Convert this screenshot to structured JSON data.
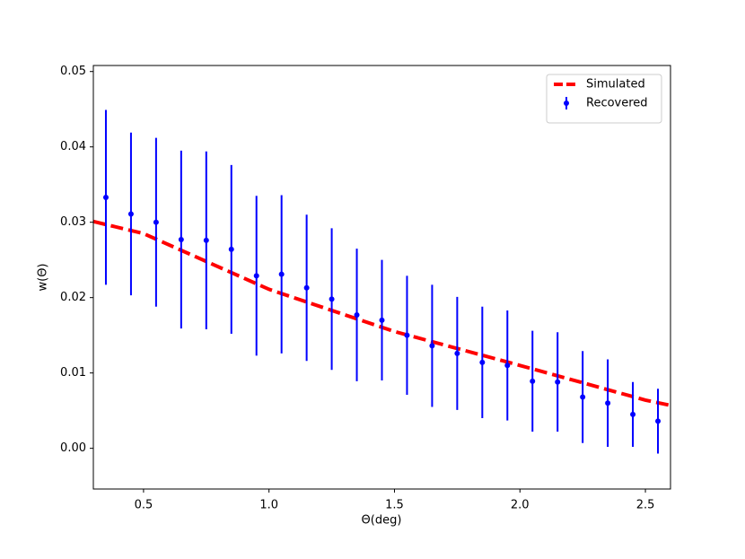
{
  "chart_data": {
    "type": "errorbar",
    "xlabel": "Θ(deg)",
    "ylabel": "w(Θ)",
    "xlim": [
      0.3,
      2.6
    ],
    "ylim": [
      -0.0054,
      0.0508
    ],
    "xticks": [
      0.5,
      {
        "value": 1,
        "label": "1.0"
      },
      1.5,
      {
        "value": 2,
        "label": "2.0"
      },
      2.5
    ],
    "yticks": [
      {
        "value": 0,
        "label": "0.00"
      },
      0.01,
      0.02,
      0.03,
      0.04,
      0.05
    ],
    "legend": "upper right",
    "series": [
      {
        "name": "Simulated",
        "type": "line",
        "color": "#ff0000",
        "x": [
          0.3,
          0.5,
          1.0,
          1.5,
          2.0,
          2.5,
          2.6
        ],
        "values": [
          0.0301,
          0.0285,
          0.0211,
          0.0155,
          0.011,
          0.0064,
          0.0057
        ]
      },
      {
        "name": "Recovered",
        "type": "errorbar",
        "color": "#0000ff",
        "x": [
          0.35,
          0.45,
          0.55,
          0.65,
          0.75,
          0.85,
          0.95,
          1.05,
          1.15,
          1.25,
          1.35,
          1.45,
          1.55,
          1.65,
          1.75,
          1.85,
          1.95,
          2.05,
          2.15,
          2.25,
          2.35,
          2.45,
          2.55
        ],
        "values": [
          0.0333,
          0.0311,
          0.03,
          0.0277,
          0.0276,
          0.0264,
          0.0229,
          0.0231,
          0.0213,
          0.0198,
          0.0177,
          0.017,
          0.015,
          0.0136,
          0.0126,
          0.0114,
          0.011,
          0.0089,
          0.0088,
          0.0068,
          0.006,
          0.0045,
          0.0036
        ],
        "errors": [
          0.0116,
          0.0108,
          0.0112,
          0.0118,
          0.0118,
          0.0112,
          0.0106,
          0.0105,
          0.0097,
          0.0094,
          0.0088,
          0.008,
          0.0079,
          0.0081,
          0.0075,
          0.0074,
          0.0073,
          0.0067,
          0.0066,
          0.0061,
          0.0058,
          0.0043,
          0.0043
        ]
      }
    ]
  }
}
